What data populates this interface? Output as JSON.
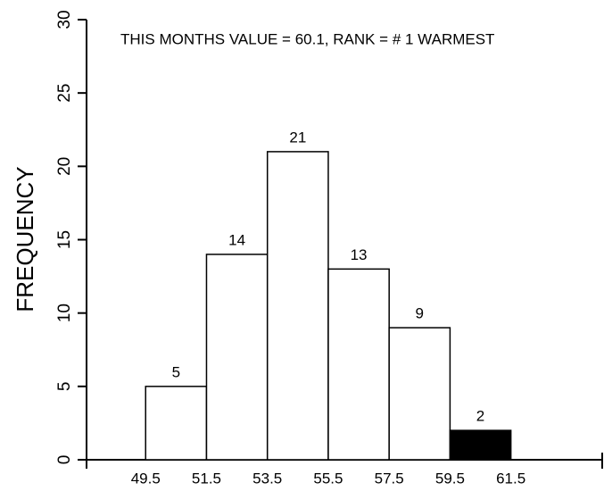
{
  "chart_data": {
    "type": "histogram",
    "annotation": "THIS MONTHS VALUE =  60.1, RANK = #  1 WARMEST",
    "y_label": "FREQUENCY",
    "bins": [
      49.5,
      51.5,
      53.5,
      55.5,
      57.5,
      59.5,
      61.5
    ],
    "values": [
      5,
      14,
      21,
      13,
      9,
      2
    ],
    "colors": [
      "#ffffff",
      "#ffffff",
      "#ffffff",
      "#ffffff",
      "#ffffff",
      "#000000"
    ],
    "xlim": [
      47.5,
      64.5
    ],
    "xticks": [
      49.5,
      51.5,
      53.5,
      55.5,
      57.5,
      59.5,
      61.5
    ],
    "ylim": [
      0,
      30
    ],
    "yticks": [
      0,
      5,
      10,
      15,
      20,
      25,
      30
    ]
  }
}
